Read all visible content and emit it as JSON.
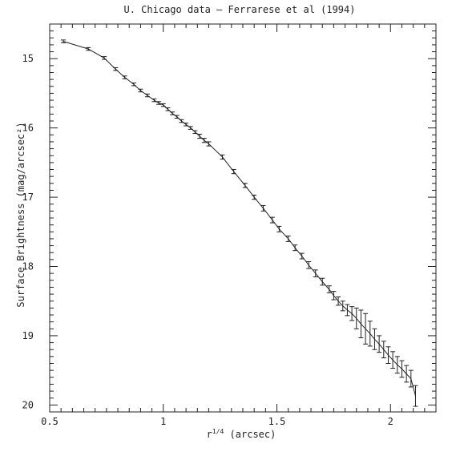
{
  "chart_data": {
    "type": "line",
    "title": "U. Chicago data – Ferrarese et al (1994)",
    "xlabel": "r",
    "xlabel_sup": "1/4",
    "xlabel_unit": " (arcsec)",
    "ylabel": "Surface Brightness (mag/arcsec²)",
    "xlim": [
      0.5,
      2.2
    ],
    "ylim": [
      20.1,
      14.5
    ],
    "y_inverted": true,
    "grid": false,
    "legend": "none",
    "x_ticks": [
      0.5,
      1,
      1.5,
      2
    ],
    "x_tick_labels": [
      "0.5",
      "1",
      "1.5",
      "2"
    ],
    "y_ticks": [
      15,
      16,
      17,
      18,
      19,
      20
    ],
    "y_tick_labels": [
      "15",
      "16",
      "17",
      "18",
      "19",
      "20"
    ],
    "series": [
      {
        "style": "line-with-errorbars",
        "x": [
          0.56,
          0.67,
          0.74,
          0.79,
          0.83,
          0.87,
          0.9,
          0.93,
          0.96,
          0.98,
          1.0,
          1.02,
          1.04,
          1.06,
          1.08,
          1.1,
          1.12,
          1.14,
          1.16,
          1.18,
          1.2,
          1.26,
          1.31,
          1.36,
          1.4,
          1.44,
          1.48,
          1.51,
          1.55,
          1.58,
          1.61,
          1.64,
          1.67,
          1.7,
          1.73,
          1.75,
          1.77,
          1.79,
          1.81,
          1.83,
          1.85,
          1.87,
          1.89,
          1.91,
          1.93,
          1.95,
          1.97,
          1.99,
          2.01,
          2.03,
          2.05,
          2.07,
          2.09,
          2.11
        ],
        "y": [
          14.75,
          14.86,
          14.99,
          15.15,
          15.27,
          15.37,
          15.46,
          15.53,
          15.6,
          15.64,
          15.67,
          15.73,
          15.79,
          15.84,
          15.9,
          15.95,
          16.0,
          16.06,
          16.12,
          16.18,
          16.23,
          16.42,
          16.63,
          16.83,
          17.0,
          17.16,
          17.33,
          17.46,
          17.6,
          17.73,
          17.85,
          17.98,
          18.1,
          18.22,
          18.33,
          18.42,
          18.5,
          18.57,
          18.63,
          18.68,
          18.75,
          18.83,
          18.9,
          18.97,
          19.05,
          19.12,
          19.2,
          19.28,
          19.35,
          19.42,
          19.48,
          19.55,
          19.62,
          19.87
        ],
        "err": [
          0.02,
          0.02,
          0.02,
          0.02,
          0.02,
          0.02,
          0.02,
          0.02,
          0.02,
          0.02,
          0.02,
          0.02,
          0.02,
          0.02,
          0.02,
          0.02,
          0.02,
          0.02,
          0.03,
          0.03,
          0.03,
          0.03,
          0.03,
          0.03,
          0.03,
          0.04,
          0.04,
          0.04,
          0.04,
          0.04,
          0.04,
          0.05,
          0.05,
          0.05,
          0.05,
          0.06,
          0.06,
          0.07,
          0.08,
          0.1,
          0.15,
          0.2,
          0.22,
          0.18,
          0.15,
          0.12,
          0.12,
          0.12,
          0.12,
          0.12,
          0.12,
          0.12,
          0.12,
          0.15
        ]
      }
    ]
  }
}
